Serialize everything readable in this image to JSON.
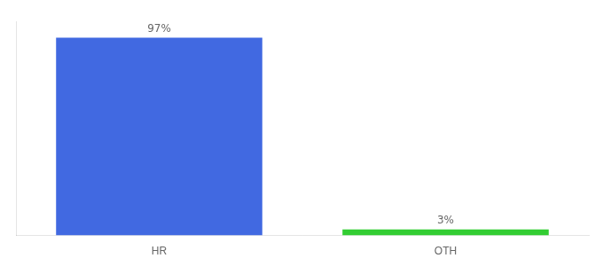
{
  "chart_data": {
    "type": "bar",
    "categories": [
      "HR",
      "OTH"
    ],
    "values": [
      97,
      3
    ],
    "value_labels": [
      "97%",
      "3%"
    ],
    "colors": [
      "#4169e1",
      "#32cd32"
    ],
    "ylim": [
      0,
      105
    ],
    "data_labels": true,
    "tick_labels": "x",
    "grid": false
  }
}
